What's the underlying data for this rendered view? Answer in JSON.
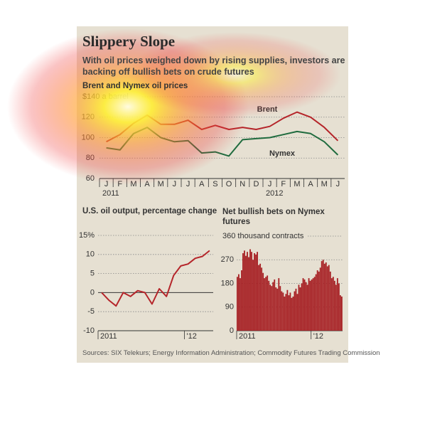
{
  "title": "Slippery Slope",
  "subtitle": "With oil prices weighed down by rising supplies, investors are backing off bullish bets on crude futures",
  "source": "Sources: SIX Telekurs; Energy Information Administration; Commodity Futures Trading Commission",
  "chart_data": [
    {
      "type": "line",
      "y_label": "Brent and Nymex oil prices",
      "categories": [
        "J",
        "F",
        "M",
        "A",
        "M",
        "J",
        "J",
        "A",
        "S",
        "O",
        "N",
        "D",
        "J",
        "F",
        "M",
        "A",
        "M",
        "J"
      ],
      "group_labels": [
        "2011",
        "2012"
      ],
      "series": [
        {
          "name": "Brent",
          "color": "#b5252a",
          "values": [
            96,
            103,
            114,
            122,
            113,
            113,
            117,
            108,
            112,
            108,
            110,
            108,
            111,
            119,
            125,
            120,
            110,
            97
          ]
        },
        {
          "name": "Nymex",
          "color": "#1f6b3e",
          "values": [
            90,
            88,
            104,
            110,
            100,
            96,
            97,
            85,
            86,
            82,
            98,
            99,
            100,
            103,
            106,
            104,
            96,
            83
          ]
        }
      ],
      "ylim": [
        60,
        140
      ],
      "yticks": [
        60,
        80,
        100,
        120,
        {
          "value": 140,
          "label": "$140 a barrel"
        }
      ],
      "grid": true
    },
    {
      "type": "line",
      "title": "U.S. oil output, percentage change",
      "categories": [
        "2011",
        null,
        null,
        null,
        null,
        null,
        null,
        null,
        null,
        null,
        null,
        null,
        "'12",
        null,
        null,
        null
      ],
      "series": [
        {
          "color": "#b5252a",
          "values": [
            0,
            -2,
            -3.5,
            0,
            -1,
            0.5,
            0,
            -3,
            1,
            -1,
            4.5,
            7,
            7.5,
            9,
            9.5,
            11
          ]
        }
      ],
      "ylim": [
        -10,
        15
      ],
      "yticks": [
        -10,
        -5,
        0,
        5,
        10,
        {
          "value": 15,
          "label": "15%"
        }
      ],
      "grid": true
    },
    {
      "type": "bar",
      "title": "Net bullish bets on Nymex futures",
      "categories": [
        "2011",
        null,
        null,
        null,
        null,
        null,
        null,
        null,
        null,
        null,
        null,
        null,
        null,
        null,
        null,
        null,
        null,
        null,
        null,
        null,
        null,
        null,
        null,
        null,
        null,
        null,
        null,
        null,
        null,
        null,
        null,
        null,
        null,
        null,
        null,
        null,
        null,
        null,
        null,
        null,
        null,
        null,
        null,
        null,
        null,
        null,
        null,
        null,
        null,
        null,
        null,
        null,
        "'12",
        null,
        null,
        null,
        null,
        null,
        null,
        null,
        null,
        null,
        null,
        null,
        null,
        null,
        null,
        null,
        null,
        null,
        null,
        null,
        null,
        null
      ],
      "values": [
        205,
        215,
        200,
        230,
        295,
        305,
        285,
        300,
        280,
        310,
        300,
        270,
        295,
        290,
        300,
        250,
        255,
        240,
        220,
        200,
        205,
        210,
        190,
        175,
        170,
        185,
        195,
        165,
        160,
        200,
        170,
        150,
        145,
        130,
        140,
        155,
        135,
        145,
        125,
        130,
        150,
        160,
        140,
        175,
        165,
        180,
        200,
        195,
        185,
        175,
        200,
        190,
        195,
        200,
        205,
        215,
        230,
        225,
        240,
        265,
        270,
        255,
        260,
        245,
        250,
        225,
        200,
        205,
        190,
        175,
        200,
        180,
        135,
        130
      ],
      "color": "#a61e22",
      "ylim": [
        0,
        360
      ],
      "yticks": [
        0,
        90,
        180,
        270,
        {
          "value": 360,
          "label": "360 thousand contracts"
        }
      ],
      "grid": true
    }
  ]
}
